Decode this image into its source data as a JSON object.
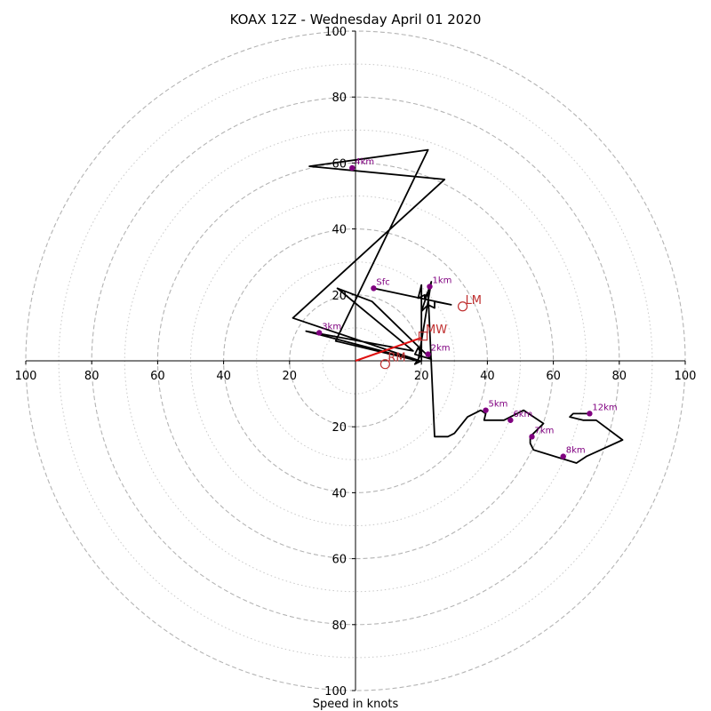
{
  "chart_data": {
    "type": "hodograph",
    "title": "KOAX 12Z - Wednesday April 01 2020",
    "xlabel": "Speed in knots",
    "xlim": [
      -100,
      100
    ],
    "ylim": [
      -100,
      100
    ],
    "ring_major": [
      20,
      40,
      60,
      80,
      100
    ],
    "ring_minor": [
      10,
      30,
      50,
      70,
      90
    ],
    "tick_labels": {
      "left": [
        "100",
        "80",
        "60",
        "40",
        "20"
      ],
      "right": [
        "20",
        "40",
        "60",
        "80",
        "100"
      ],
      "top": [
        "100",
        "80",
        "60",
        "40",
        "20"
      ],
      "bottom": [
        "20",
        "40",
        "60",
        "80",
        "100"
      ]
    },
    "hodograph": {
      "color": "#000000",
      "u": [
        5.5,
        29,
        24,
        24,
        22,
        20,
        23,
        19,
        -6,
        22,
        -14,
        27,
        -19,
        19.5,
        -15,
        17.5,
        -5.5,
        5,
        23,
        18,
        19,
        20,
        18,
        20,
        20,
        19,
        21,
        21,
        22,
        24,
        28,
        30,
        34,
        38,
        39.5,
        39,
        45,
        51,
        57,
        53,
        53,
        54,
        67,
        70,
        81,
        73,
        69,
        65,
        66,
        71
      ],
      "v": [
        22,
        17,
        18,
        16,
        17,
        15,
        24,
        0,
        6,
        64,
        59,
        55,
        13,
        0,
        9,
        3,
        22,
        18,
        0.5,
        2,
        4,
        2,
        -1,
        0,
        23,
        19,
        20,
        19,
        21,
        -23,
        -23,
        -22,
        -17,
        -15,
        -16,
        -18,
        -18,
        -15,
        -19,
        -23,
        -25,
        -27,
        -31,
        -29,
        -24,
        -18,
        -18,
        -17,
        -16,
        -16
      ]
    },
    "height_markers": {
      "color": "#800080",
      "points": [
        {
          "label": "Sfc",
          "u": 5.5,
          "v": 22
        },
        {
          "label": "1km",
          "u": 22.5,
          "v": 22.5
        },
        {
          "label": "2km",
          "u": 22,
          "v": 2
        },
        {
          "label": "3km",
          "u": -11,
          "v": 8.5
        },
        {
          "label": "4km",
          "u": -1,
          "v": 58.5
        },
        {
          "label": "5km",
          "u": 39.5,
          "v": -15
        },
        {
          "label": "6km",
          "u": 47,
          "v": -18
        },
        {
          "label": "7km",
          "u": 53.5,
          "v": -23
        },
        {
          "label": "8km",
          "u": 63,
          "v": -29
        },
        {
          "label": "12km",
          "u": 71,
          "v": -16
        }
      ]
    },
    "storm_motion": {
      "color": "#c03030",
      "points": [
        {
          "label": "LM",
          "u": 32.5,
          "v": 16.5,
          "marker": "circle"
        },
        {
          "label": "MW",
          "u": 20.5,
          "v": 7.5,
          "marker": "square"
        },
        {
          "label": "RM",
          "u": 9,
          "v": -1,
          "marker": "circle"
        }
      ],
      "vector_to": {
        "u": 20,
        "v": 7
      }
    }
  }
}
